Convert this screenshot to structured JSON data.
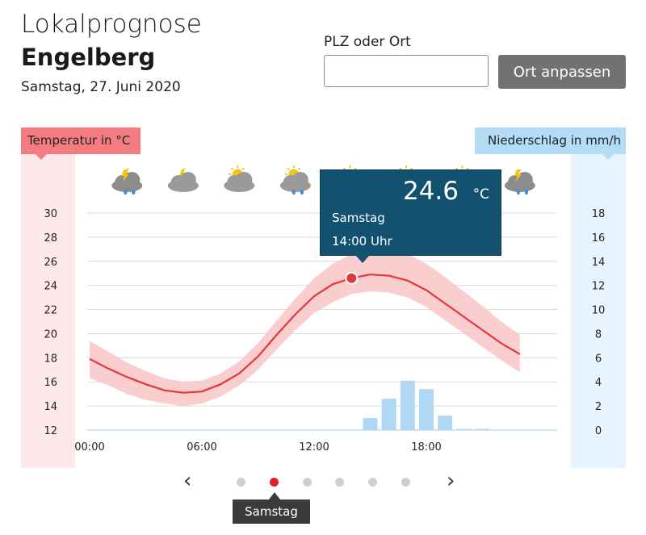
{
  "header": {
    "title": "Lokalprognose",
    "place": "Engelberg",
    "date": "Samstag, 27. Juni 2020"
  },
  "search": {
    "label": "PLZ oder Ort",
    "value": "",
    "placeholder": "",
    "button_label": "Ort anpassen"
  },
  "axis_tags": {
    "temperature": "Temperatur in °C",
    "precipitation": "Niederschlag in mm/h"
  },
  "weather_icons": [
    {
      "hour": 2,
      "icon": "thunderstorm-rain-night-icon"
    },
    {
      "hour": 5,
      "icon": "cloudy-night-icon"
    },
    {
      "hour": 8,
      "icon": "sun-cloud-icon"
    },
    {
      "hour": 11,
      "icon": "sun-cloud-rain-icon"
    },
    {
      "hour": 14,
      "icon": "sun-cloud-icon"
    },
    {
      "hour": 17,
      "icon": "sun-cloud-thunder-icon"
    },
    {
      "hour": 20,
      "icon": "sun-cloud-thunder-icon"
    },
    {
      "hour": 23,
      "icon": "thunderstorm-rain-icon"
    }
  ],
  "tooltip": {
    "value": "24.6",
    "unit": "°C",
    "day": "Samstag",
    "time": "14:00 Uhr"
  },
  "pager": {
    "prev": "‹",
    "next": "›",
    "dot_count": 6,
    "active_index": 1,
    "active_label": "Samstag"
  },
  "colors": {
    "temp_line": "#e2373d",
    "temp_band": "#f9c5c7",
    "temp_panel": "#fde9e9",
    "precip_bar": "#b0d8f5",
    "precip_panel": "#e8f4fd",
    "tooltip_bg": "#12516f",
    "button_bg": "#727272",
    "active_dot": "#e0232a"
  },
  "chart_data": {
    "type": "line",
    "x_unit": "hour",
    "xlim": [
      0,
      24
    ],
    "x_ticks": [
      "00:00",
      "06:00",
      "12:00",
      "18:00"
    ],
    "temperature": {
      "ylim": [
        12,
        30
      ],
      "y_ticks": [
        "30",
        "28",
        "26",
        "24",
        "22",
        "20",
        "18",
        "16",
        "14",
        "12"
      ],
      "hours": [
        0,
        1,
        2,
        3,
        4,
        5,
        6,
        7,
        8,
        9,
        10,
        11,
        12,
        13,
        14,
        15,
        16,
        17,
        18,
        19,
        20,
        21,
        22,
        23
      ],
      "values": [
        17.9,
        17.1,
        16.4,
        15.8,
        15.3,
        15.1,
        15.2,
        15.8,
        16.7,
        18.1,
        19.9,
        21.6,
        23.1,
        24.1,
        24.6,
        24.9,
        24.8,
        24.4,
        23.6,
        22.5,
        21.4,
        20.3,
        19.2,
        18.3
      ],
      "band_upper": [
        19.4,
        18.5,
        17.6,
        16.9,
        16.3,
        16.0,
        16.1,
        16.7,
        17.7,
        19.2,
        21.1,
        22.9,
        24.6,
        25.8,
        26.6,
        27.1,
        27.0,
        26.6,
        25.8,
        24.7,
        23.5,
        22.3,
        21.0,
        19.9
      ],
      "band_lower": [
        16.3,
        15.7,
        15.0,
        14.5,
        14.2,
        14.0,
        14.2,
        14.8,
        15.7,
        17.0,
        18.7,
        20.3,
        21.7,
        22.6,
        23.3,
        23.5,
        23.4,
        23.0,
        22.2,
        21.1,
        20.0,
        18.9,
        17.8,
        16.8
      ]
    },
    "precipitation": {
      "ylim": [
        0,
        18
      ],
      "y_ticks": [
        "18",
        "16",
        "14",
        "12",
        "10",
        "8",
        "6",
        "4",
        "2",
        "0"
      ],
      "hours": [
        15,
        16,
        17,
        18,
        19,
        20,
        21
      ],
      "values": [
        1.0,
        2.6,
        4.1,
        3.4,
        1.2,
        0.1,
        0.1
      ]
    },
    "highlight": {
      "hour": 14,
      "value": 24.6
    }
  }
}
